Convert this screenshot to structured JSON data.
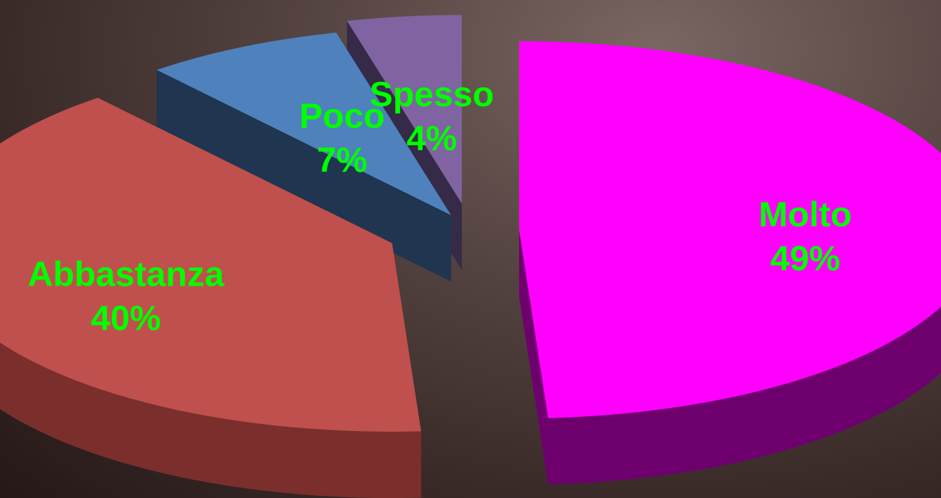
{
  "chart_data": {
    "type": "pie",
    "title": "",
    "categories": [
      "Molto",
      "Abbastanza",
      "Poco",
      "Spesso"
    ],
    "values": [
      49,
      40,
      7,
      4
    ],
    "value_labels": [
      "49%",
      "40%",
      "7%",
      "4%"
    ],
    "colors": {
      "Molto": "#ff00ff",
      "Abbastanza": "#c0504d",
      "Poco": "#4f81bd",
      "Spesso": "#8064a2"
    },
    "side_colors": {
      "Molto": "#6e006e",
      "Abbastanza": "#7a2f2c",
      "Poco": "#1f3550",
      "Spesso": "#352a47"
    },
    "label_color": "#00ff00",
    "style": "3d-exploded",
    "legend": "none"
  }
}
